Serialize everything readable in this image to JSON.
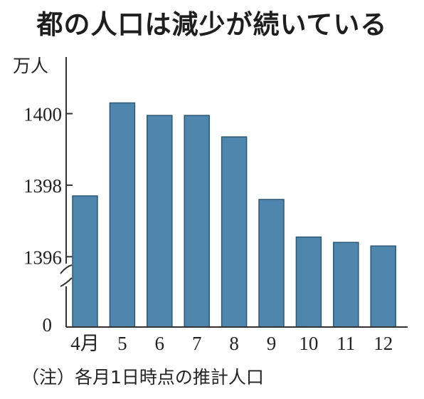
{
  "chart_data": {
    "type": "bar",
    "title": "都の人口は減少が続いている",
    "ylabel": "万人",
    "categories": [
      "4月",
      "5",
      "6",
      "7",
      "8",
      "9",
      "10",
      "11",
      "12"
    ],
    "values": [
      1397.7,
      1400.3,
      1399.95,
      1399.95,
      1399.35,
      1397.6,
      1396.55,
      1396.4,
      1396.3
    ],
    "yticks": [
      1396,
      1398,
      1400
    ],
    "zero_tick": "0",
    "ylim": [
      1394.4,
      1402.0
    ],
    "axis_break": true,
    "grid": false,
    "bar_color": "#4f86ad",
    "note": "（注）各月1日時点の推計人口"
  }
}
